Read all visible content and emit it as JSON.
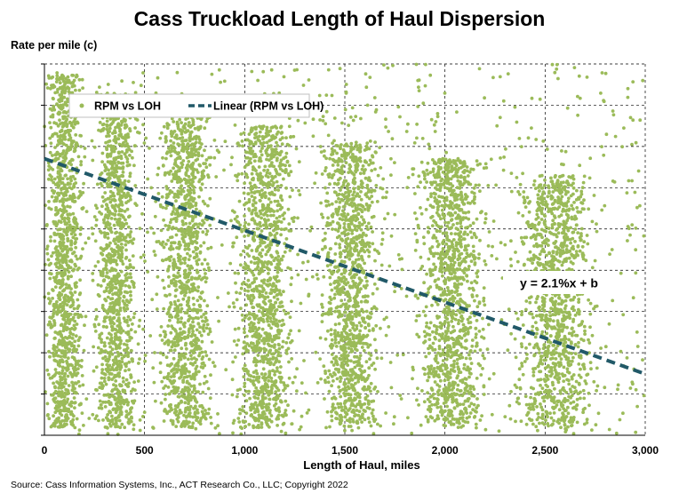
{
  "chart_data": {
    "type": "scatter",
    "title": "Cass Truckload Length of Haul Dispersion",
    "xlabel": "Length of Haul, miles",
    "ylabel": "Rate per mile (c)",
    "xlim": [
      0,
      3000
    ],
    "x_ticks": [
      "0",
      "500",
      "1,000",
      "1,500",
      "2,000",
      "2,500",
      "3,000"
    ],
    "x_tick_values": [
      0,
      500,
      1000,
      1500,
      2000,
      2500,
      3000
    ],
    "y_tick_labels_shown": false,
    "grid": "dashed",
    "legend_placement": "top-left",
    "series": [
      {
        "name": "RPM vs LOH",
        "kind": "points",
        "color": "#9bbb59",
        "description_clusters": [
          {
            "x_center": 100,
            "x_spread": 90
          },
          {
            "x_center": 360,
            "x_spread": 100
          },
          {
            "x_center": 700,
            "x_spread": 120
          },
          {
            "x_center": 1100,
            "x_spread": 140
          },
          {
            "x_center": 1530,
            "x_spread": 140
          },
          {
            "x_center": 2030,
            "x_spread": 160
          },
          {
            "x_center": 2550,
            "x_spread": 180
          }
        ]
      },
      {
        "name": "Linear (RPM vs LOH)",
        "kind": "trendline",
        "color": "#215968",
        "x": [
          0,
          3000
        ],
        "y_norm": [
          0.745,
          0.165
        ]
      }
    ],
    "annotation": "y = 2.1%x + b"
  },
  "source": "Source: Cass Information Systems, Inc., ACT Research Co., LLC; Copyright 2022"
}
